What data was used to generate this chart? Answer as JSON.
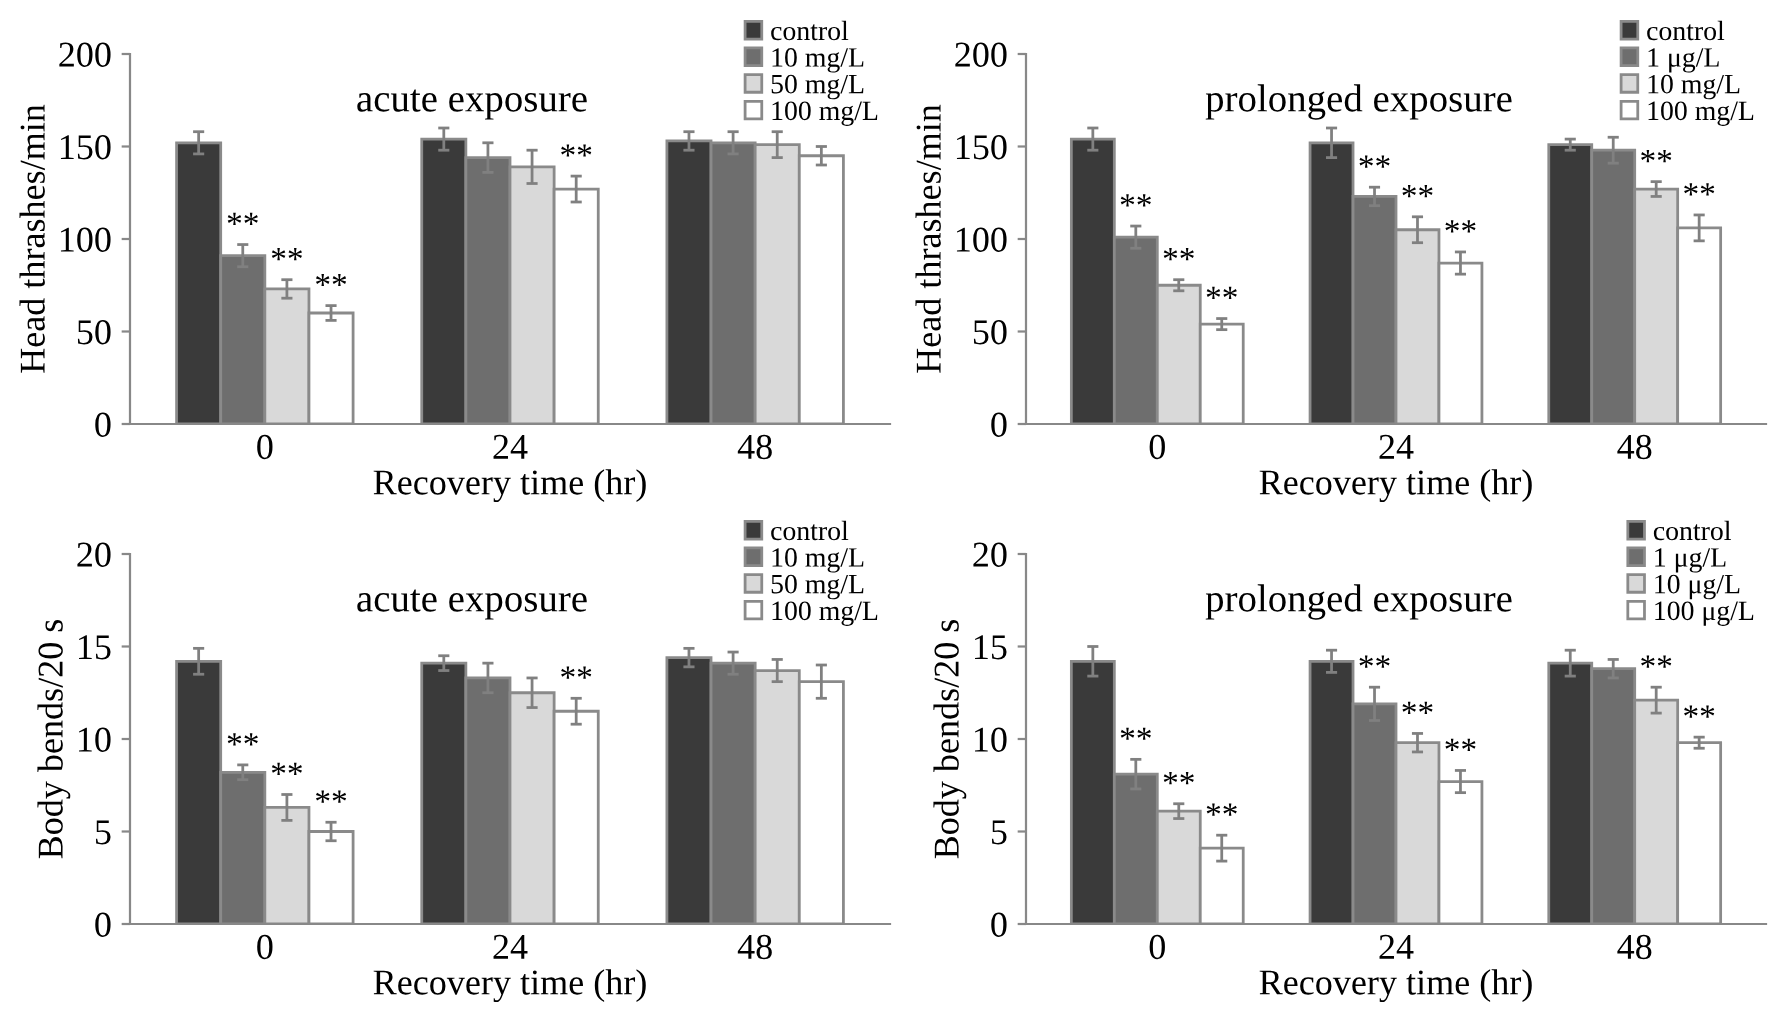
{
  "chart_data": [
    {
      "type": "bar",
      "title": "acute exposure",
      "xlabel": "Recovery time (hr)",
      "ylabel": "Head thrashes/min",
      "categories": [
        "0",
        "24",
        "48"
      ],
      "ylim": [
        0,
        200
      ],
      "yticks": [
        0,
        50,
        100,
        150,
        200
      ],
      "grid": false,
      "legend": "top right",
      "series": [
        {
          "name": "control",
          "color": "#3a3a3a",
          "values": [
            152,
            154,
            153
          ],
          "errors": [
            6,
            6,
            5
          ]
        },
        {
          "name": "10 mg/L",
          "color": "#6e6e6e",
          "values": [
            91,
            144,
            152
          ],
          "errors": [
            6,
            8,
            6
          ]
        },
        {
          "name": "50 mg/L",
          "color": "#d9d9d9",
          "values": [
            73,
            139,
            151
          ],
          "errors": [
            5,
            9,
            7
          ]
        },
        {
          "name": "100 mg/L",
          "color": "#ffffff",
          "values": [
            60,
            127,
            145
          ],
          "errors": [
            4,
            7,
            5
          ]
        }
      ],
      "annotations": [
        {
          "text": "**",
          "x": "0",
          "y": 91
        },
        {
          "text": "**",
          "x": "0",
          "y": 73
        },
        {
          "text": "**",
          "x": "0",
          "y": 60
        },
        {
          "text": "**",
          "x": "24",
          "y": 127
        }
      ]
    },
    {
      "type": "bar",
      "title": "prolonged exposure",
      "xlabel": "Recovery time (hr)",
      "ylabel": "Head thrashes/min",
      "categories": [
        "0",
        "24",
        "48"
      ],
      "ylim": [
        0,
        200
      ],
      "yticks": [
        0,
        50,
        100,
        150,
        200
      ],
      "grid": false,
      "legend": "top right",
      "series": [
        {
          "name": "control",
          "color": "#3a3a3a",
          "values": [
            154,
            152,
            151
          ],
          "errors": [
            6,
            8,
            3
          ]
        },
        {
          "name": "1 μg/L",
          "color": "#6e6e6e",
          "values": [
            101,
            123,
            148
          ],
          "errors": [
            6,
            5,
            7
          ]
        },
        {
          "name": "10 mg/L",
          "color": "#d9d9d9",
          "values": [
            75,
            105,
            127
          ],
          "errors": [
            3,
            7,
            4
          ]
        },
        {
          "name": "100 mg/L",
          "color": "#ffffff",
          "values": [
            54,
            87,
            106
          ],
          "errors": [
            3,
            6,
            7
          ]
        }
      ],
      "annotations": [
        {
          "text": "**",
          "x": "0",
          "y": 101
        },
        {
          "text": "**",
          "x": "0",
          "y": 75
        },
        {
          "text": "**",
          "x": "0",
          "y": 54
        },
        {
          "text": "**",
          "x": "24",
          "y": 123
        },
        {
          "text": "**",
          "x": "24",
          "y": 105
        },
        {
          "text": "**",
          "x": "24",
          "y": 87
        },
        {
          "text": "**",
          "x": "48",
          "y": 127
        },
        {
          "text": "**",
          "x": "48",
          "y": 106
        }
      ]
    },
    {
      "type": "bar",
      "title": "acute exposure",
      "xlabel": "Recovery time (hr)",
      "ylabel": "Body bends/20 s",
      "categories": [
        "0",
        "24",
        "48"
      ],
      "ylim": [
        0,
        20
      ],
      "yticks": [
        0,
        5,
        10,
        15,
        20
      ],
      "grid": false,
      "legend": "top right",
      "series": [
        {
          "name": "control",
          "color": "#3a3a3a",
          "values": [
            14.2,
            14.1,
            14.4
          ],
          "errors": [
            0.7,
            0.4,
            0.5
          ]
        },
        {
          "name": "10 mg/L",
          "color": "#6e6e6e",
          "values": [
            8.2,
            13.3,
            14.1
          ],
          "errors": [
            0.4,
            0.8,
            0.6
          ]
        },
        {
          "name": "50 mg/L",
          "color": "#d9d9d9",
          "values": [
            6.3,
            12.5,
            13.7
          ],
          "errors": [
            0.7,
            0.8,
            0.6
          ]
        },
        {
          "name": "100 mg/L",
          "color": "#ffffff",
          "values": [
            5.0,
            11.5,
            13.1
          ],
          "errors": [
            0.5,
            0.7,
            0.9
          ]
        }
      ],
      "annotations": [
        {
          "text": "**",
          "x": "0",
          "y": 8.2
        },
        {
          "text": "**",
          "x": "0",
          "y": 6.3
        },
        {
          "text": "**",
          "x": "0",
          "y": 5.0
        },
        {
          "text": "**",
          "x": "24",
          "y": 11.5
        }
      ]
    },
    {
      "type": "bar",
      "title": "prolonged exposure",
      "xlabel": "Recovery time (hr)",
      "ylabel": "Body bends/20 s",
      "categories": [
        "0",
        "24",
        "48"
      ],
      "ylim": [
        0,
        20
      ],
      "yticks": [
        0,
        5,
        10,
        15,
        20
      ],
      "grid": false,
      "legend": "top right",
      "series": [
        {
          "name": "control",
          "color": "#3a3a3a",
          "values": [
            14.2,
            14.2,
            14.1
          ],
          "errors": [
            0.8,
            0.6,
            0.7
          ]
        },
        {
          "name": "1 μg/L",
          "color": "#6e6e6e",
          "values": [
            8.1,
            11.9,
            13.8
          ],
          "errors": [
            0.8,
            0.9,
            0.5
          ]
        },
        {
          "name": "10 μg/L",
          "color": "#d9d9d9",
          "values": [
            6.1,
            9.8,
            12.1
          ],
          "errors": [
            0.4,
            0.5,
            0.7
          ]
        },
        {
          "name": "100 μg/L",
          "color": "#ffffff",
          "values": [
            4.1,
            7.7,
            9.8
          ],
          "errors": [
            0.7,
            0.6,
            0.3
          ]
        }
      ],
      "annotations": [
        {
          "text": "**",
          "x": "0",
          "y": 8.1
        },
        {
          "text": "**",
          "x": "0",
          "y": 6.1
        },
        {
          "text": "**",
          "x": "0",
          "y": 4.1
        },
        {
          "text": "**",
          "x": "24",
          "y": 11.9
        },
        {
          "text": "**",
          "x": "24",
          "y": 9.8
        },
        {
          "text": "**",
          "x": "24",
          "y": 7.7
        },
        {
          "text": "**",
          "x": "48",
          "y": 12.1
        },
        {
          "text": "**",
          "x": "48",
          "y": 9.8
        }
      ]
    }
  ]
}
